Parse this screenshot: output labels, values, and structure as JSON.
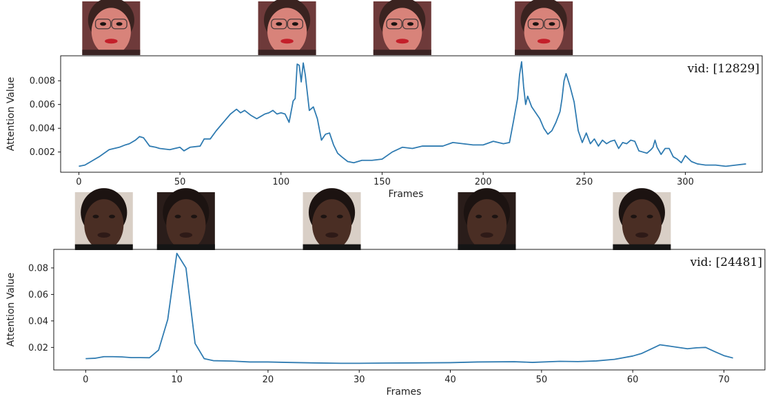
{
  "chart_data": [
    {
      "type": "line",
      "id": "top",
      "xlabel": "Frames",
      "ylabel": "Attention Value",
      "annotation": "vid: [12829]",
      "xlim": [
        -9,
        338
      ],
      "ylim": [
        0.0003,
        0.0101
      ],
      "xticks": [
        0,
        50,
        100,
        150,
        200,
        250,
        300
      ],
      "yticks": [
        0.002,
        0.004,
        0.006,
        0.008
      ],
      "ytick_labels": [
        "0.002",
        "0.004",
        "0.006",
        "0.008"
      ],
      "series_color": "#2f7bb1",
      "grid": false,
      "skin": "#d8837a",
      "face_frames": [
        16,
        103,
        160,
        230
      ],
      "x": [
        0,
        3,
        6,
        10,
        15,
        20,
        23,
        25,
        28,
        30,
        32,
        35,
        38,
        40,
        45,
        50,
        52,
        55,
        60,
        62,
        65,
        68,
        70,
        72,
        75,
        78,
        80,
        82,
        85,
        88,
        90,
        92,
        94,
        96,
        98,
        100,
        102,
        104,
        106,
        107,
        108,
        109,
        110,
        111,
        112,
        114,
        116,
        118,
        120,
        122,
        124,
        126,
        128,
        130,
        133,
        136,
        140,
        145,
        150,
        155,
        160,
        165,
        170,
        175,
        180,
        185,
        190,
        195,
        200,
        205,
        210,
        213,
        215,
        217,
        218,
        219,
        220,
        221,
        222,
        224,
        226,
        228,
        230,
        232,
        234,
        236,
        238,
        239,
        240,
        241,
        243,
        245,
        247,
        249,
        251,
        253,
        255,
        257,
        259,
        261,
        263,
        265,
        267,
        269,
        271,
        273,
        275,
        277,
        279,
        281,
        283,
        284,
        285,
        286,
        288,
        290,
        292,
        294,
        296,
        298,
        300,
        303,
        306,
        310,
        315,
        320,
        325,
        330
      ],
      "y": [
        0.0008,
        0.0009,
        0.0012,
        0.0016,
        0.0022,
        0.0024,
        0.0026,
        0.0027,
        0.003,
        0.0033,
        0.0032,
        0.0025,
        0.0024,
        0.0023,
        0.0022,
        0.0024,
        0.0021,
        0.0024,
        0.0025,
        0.0031,
        0.0031,
        0.0038,
        0.0042,
        0.0046,
        0.0052,
        0.0056,
        0.0053,
        0.0055,
        0.0051,
        0.0048,
        0.005,
        0.0052,
        0.0053,
        0.0055,
        0.0052,
        0.0053,
        0.0052,
        0.0045,
        0.0063,
        0.0065,
        0.0094,
        0.0093,
        0.0079,
        0.0095,
        0.0085,
        0.0055,
        0.0058,
        0.0048,
        0.003,
        0.0035,
        0.0036,
        0.0026,
        0.0019,
        0.0016,
        0.0012,
        0.0011,
        0.0013,
        0.0013,
        0.0014,
        0.002,
        0.0024,
        0.0023,
        0.0025,
        0.0025,
        0.0025,
        0.0028,
        0.0027,
        0.0026,
        0.0026,
        0.0029,
        0.0027,
        0.0028,
        0.0046,
        0.0065,
        0.0085,
        0.0096,
        0.0075,
        0.006,
        0.0067,
        0.0058,
        0.0053,
        0.0048,
        0.004,
        0.0035,
        0.0038,
        0.0045,
        0.0054,
        0.0065,
        0.008,
        0.0086,
        0.0075,
        0.0062,
        0.0038,
        0.0028,
        0.0036,
        0.0027,
        0.0031,
        0.0025,
        0.003,
        0.0027,
        0.0029,
        0.003,
        0.0023,
        0.0028,
        0.0027,
        0.003,
        0.0029,
        0.0021,
        0.002,
        0.0019,
        0.0022,
        0.0024,
        0.003,
        0.0024,
        0.0018,
        0.0023,
        0.0023,
        0.0016,
        0.0014,
        0.0011,
        0.0017,
        0.0012,
        0.001,
        0.0009,
        0.0009,
        0.0008,
        0.0009,
        0.001
      ]
    },
    {
      "type": "line",
      "id": "bottom",
      "xlabel": "Frames",
      "ylabel": "Attention Value",
      "annotation": "vid: [24481]",
      "xlim": [
        -3.5,
        74.5
      ],
      "ylim": [
        0.003,
        0.094
      ],
      "xticks": [
        0,
        10,
        20,
        30,
        40,
        50,
        60,
        70
      ],
      "yticks": [
        0.02,
        0.04,
        0.06,
        0.08
      ],
      "ytick_labels": [
        "0.02",
        "0.04",
        "0.06",
        "0.08"
      ],
      "series_color": "#2f7bb1",
      "grid": false,
      "skin": "#4a2e24",
      "face_frames": [
        2,
        11,
        27,
        44,
        61
      ],
      "x": [
        0,
        1,
        2,
        3,
        4,
        5,
        6,
        7,
        8,
        9,
        10,
        11,
        12,
        13,
        14,
        16,
        18,
        20,
        22,
        25,
        28,
        30,
        33,
        36,
        40,
        43,
        47,
        49,
        52,
        54,
        56,
        58,
        60,
        61,
        63,
        64,
        66,
        67,
        68,
        69,
        70,
        71
      ],
      "y": [
        0.0115,
        0.0118,
        0.013,
        0.013,
        0.0128,
        0.0123,
        0.0123,
        0.0122,
        0.018,
        0.041,
        0.091,
        0.08,
        0.023,
        0.0115,
        0.01,
        0.0097,
        0.009,
        0.009,
        0.0087,
        0.0083,
        0.008,
        0.008,
        0.0082,
        0.0083,
        0.0085,
        0.009,
        0.0092,
        0.0087,
        0.0095,
        0.0093,
        0.0098,
        0.011,
        0.0135,
        0.0155,
        0.022,
        0.021,
        0.019,
        0.0197,
        0.02,
        0.0168,
        0.0138,
        0.012
      ]
    }
  ]
}
